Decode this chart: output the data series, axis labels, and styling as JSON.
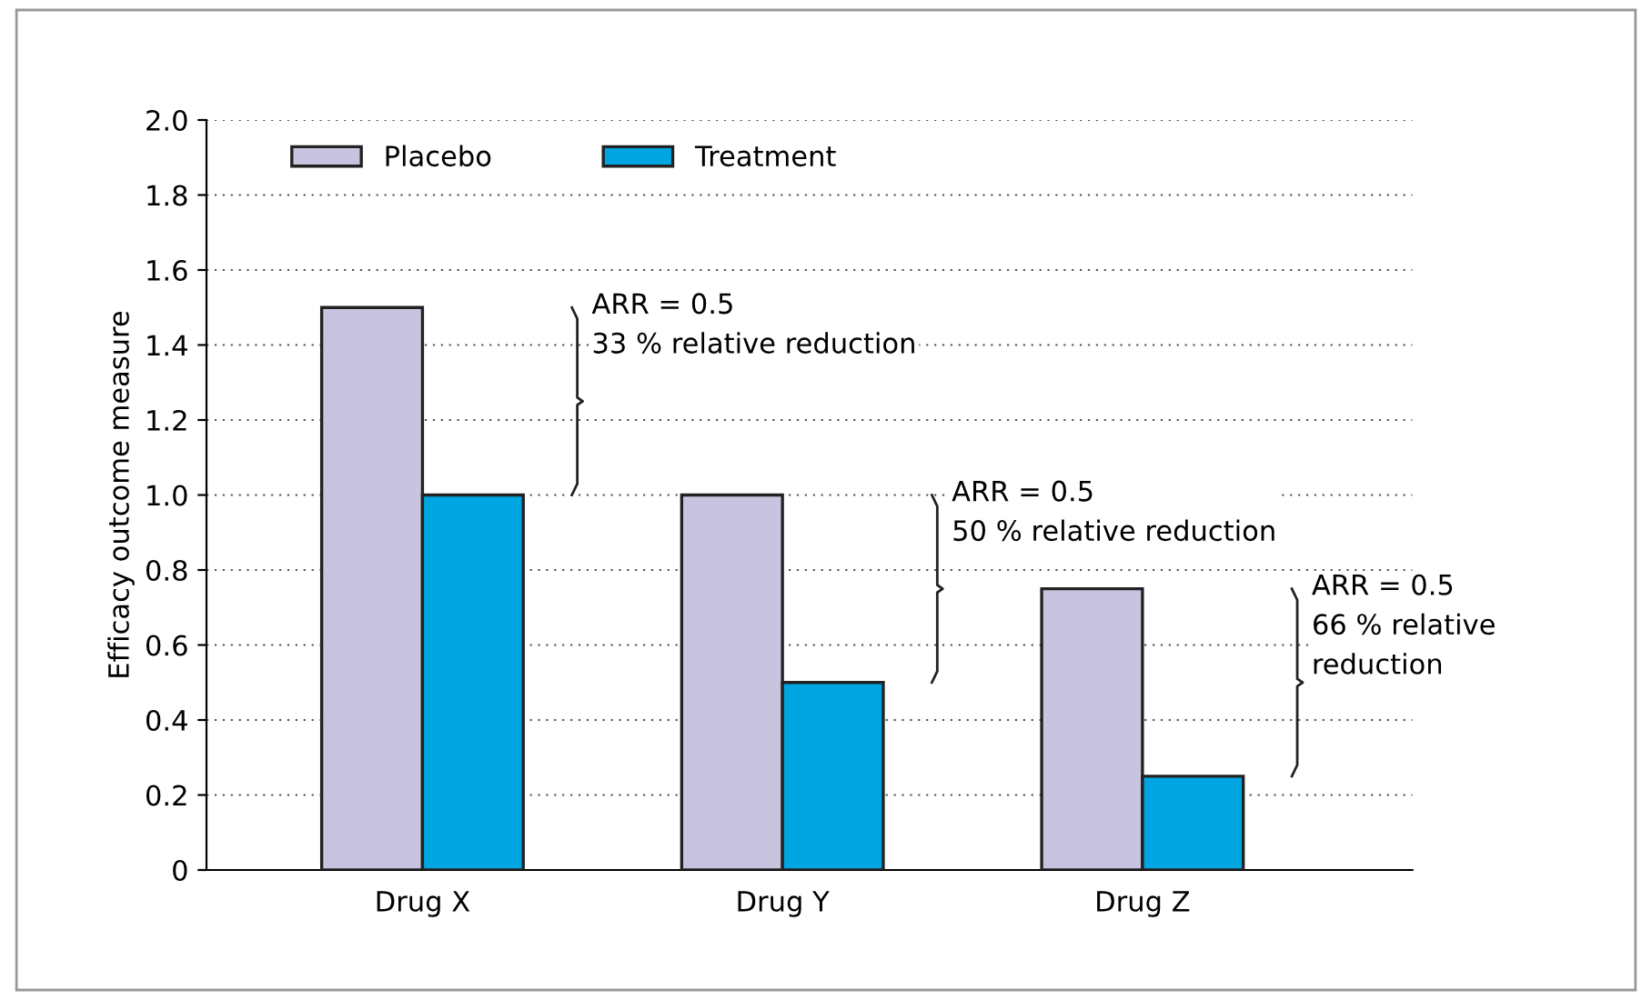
{
  "chart_data": {
    "type": "bar",
    "ylabel": "Efficacy outcome measure",
    "categories": [
      "Drug X",
      "Drug Y",
      "Drug Z"
    ],
    "series": [
      {
        "name": "Placebo",
        "color": "#c8c4e0",
        "values": [
          1.5,
          1.0,
          0.75
        ]
      },
      {
        "name": "Treatment",
        "color": "#00a6e2",
        "values": [
          1.0,
          0.5,
          0.25
        ]
      }
    ],
    "ylim": [
      0,
      2.0
    ],
    "yticks": [
      0,
      0.2,
      0.4,
      0.6,
      0.8,
      {
        "value": 1,
        "label": "1.0"
      },
      1.2,
      1.4,
      1.6,
      1.8,
      {
        "value": 2,
        "label": "2.0"
      }
    ],
    "grid": "y",
    "legend": "top left",
    "annotations": [
      "ARR = 0.5\n33 % relative reduction",
      "ARR = 0.5\n50 % relative reduction",
      "ARR = 0.5\n66 % relative\nreduction"
    ]
  }
}
